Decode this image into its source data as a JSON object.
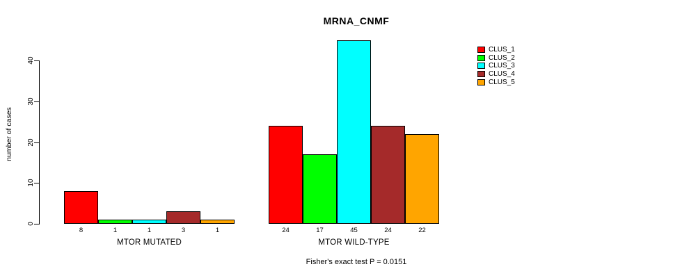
{
  "chart_data": {
    "type": "bar",
    "title": "MRNA_CNMF",
    "ylabel": "number of cases",
    "xlabel": "",
    "ylim": [
      0,
      45
    ],
    "yticks": [
      0,
      10,
      20,
      30,
      40
    ],
    "grid": false,
    "legend_position": "top-right",
    "categories": [
      "MTOR MUTATED",
      "MTOR WILD-TYPE"
    ],
    "series": [
      {
        "name": "CLUS_1",
        "color": "#FF0000",
        "values": [
          8,
          24
        ]
      },
      {
        "name": "CLUS_2",
        "color": "#00FF00",
        "values": [
          1,
          17
        ]
      },
      {
        "name": "CLUS_3",
        "color": "#00FFFF",
        "values": [
          1,
          45
        ]
      },
      {
        "name": "CLUS_4",
        "color": "#A52A2A",
        "values": [
          3,
          24
        ]
      },
      {
        "name": "CLUS_5",
        "color": "#FFA500",
        "values": [
          1,
          22
        ]
      }
    ],
    "bar_value_labels": true,
    "annotation": "Fisher's exact test P = 0.0151"
  }
}
